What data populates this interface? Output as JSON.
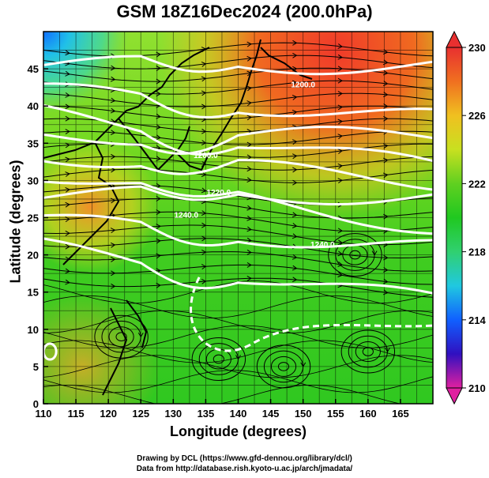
{
  "title": "GSM 18Z16Dec2024 (200.0hPa)",
  "xaxis": {
    "label": "Longitude (degrees)",
    "range": [
      110,
      170
    ],
    "ticks": [
      110,
      115,
      120,
      125,
      130,
      135,
      140,
      145,
      150,
      155,
      160,
      165
    ]
  },
  "yaxis": {
    "label": "Latitude  (degrees)",
    "range": [
      0,
      50
    ],
    "ticks": [
      0,
      5,
      10,
      15,
      20,
      25,
      30,
      35,
      40,
      45
    ]
  },
  "colorbar": {
    "ticks": [
      210,
      214,
      218,
      222,
      226,
      230
    ],
    "range": [
      210,
      230
    ],
    "colors": [
      "#e020a0",
      "#3010c0",
      "#1060ff",
      "#20c8e0",
      "#30d070",
      "#20c820",
      "#60d020",
      "#c8e020",
      "#f0c020",
      "#f07020",
      "#e83030"
    ]
  },
  "contour_labels": [
    "1200.0",
    "1200.0",
    "1220.0",
    "1240.0",
    "1240.0"
  ],
  "credits": {
    "line1": "Drawing by DCL (https://www.gfd-dennou.org/library/dcl/)",
    "line2": "Data from http://database.rish.kyoto-u.ac.jp/arch/jmadata/"
  },
  "chart_data": {
    "type": "heatmap",
    "variable": "200.0hPa temperature (K) with streamlines and geopotential contours",
    "x_range": [
      110,
      170
    ],
    "y_range": [
      0,
      50
    ],
    "value_range": [
      210,
      230
    ]
  }
}
